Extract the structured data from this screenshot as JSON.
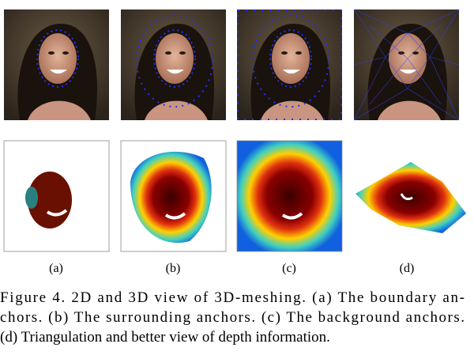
{
  "figure": {
    "subfigure_labels": [
      "(a)",
      "(b)",
      "(c)",
      "(d)"
    ],
    "caption_lines": [
      "Figure 4. 2D and 3D view of 3D-meshing. (a) The boundary an-",
      "chors. (b) The surrounding anchors. (c) The background anchors.",
      "(d) Triangulation and better view of depth information."
    ]
  }
}
